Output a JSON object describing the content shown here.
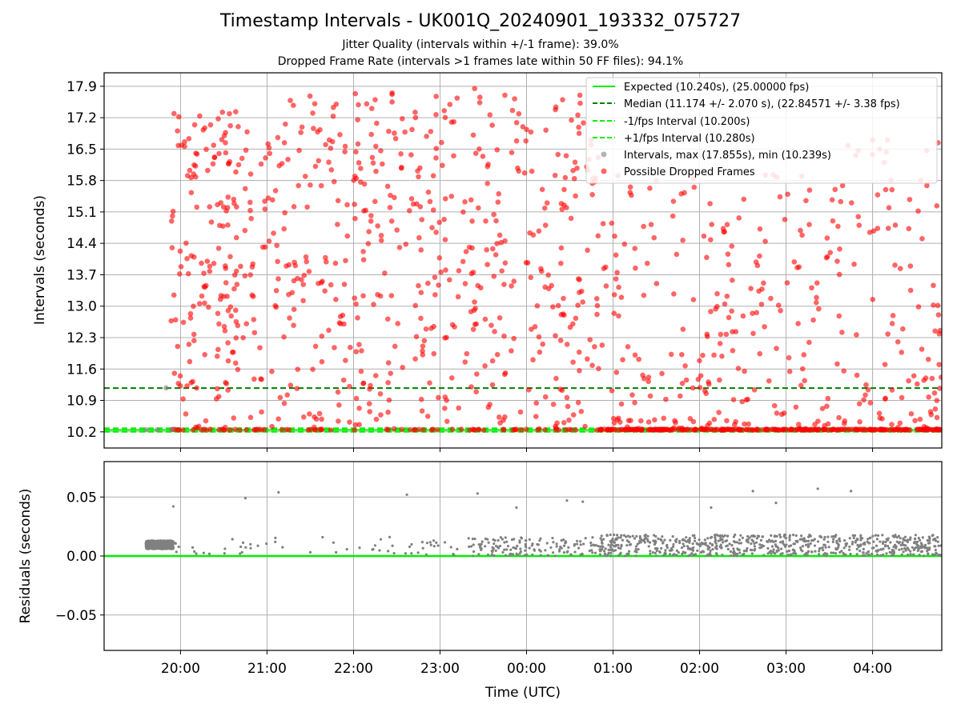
{
  "chart_data": [
    {
      "type": "scatter",
      "title": "Timestamp Intervals - UK001Q_20240901_193332_075727",
      "subtitle_lines": [
        "Jitter Quality (intervals within +/-1 frame): 39.0%",
        "Dropped Frame Rate (intervals >1 frames late within 50 FF files): 94.1%"
      ],
      "xlabel": "",
      "ylabel": "Intervals (seconds)",
      "yticks": [
        "10.2",
        "10.9",
        "11.6",
        "12.3",
        "13.0",
        "13.7",
        "14.4",
        "15.1",
        "15.8",
        "16.5",
        "17.2",
        "17.9"
      ],
      "ylim": [
        9.84,
        18.2
      ],
      "xlim": [
        "19:07",
        "04:48"
      ],
      "grid": true,
      "legend_position": "top-right",
      "legend": [
        {
          "label": "Expected (10.240s), (25.00000 fps)",
          "style": "solid-line",
          "color": "#00ee00"
        },
        {
          "label": "Median (11.174 +/- 2.070 s), (22.84571 +/- 3.38 fps)",
          "style": "dashed-line",
          "color": "#008000"
        },
        {
          "label": "-1/fps Interval (10.200s)",
          "style": "dashed-line",
          "color": "#00ee00"
        },
        {
          "label": "+1/fps Interval (10.280s)",
          "style": "dashed-line",
          "color": "#00ee00"
        },
        {
          "label": "Intervals, max (17.855s), min (10.239s)",
          "style": "marker",
          "color": "#808080"
        },
        {
          "label": "Possible Dropped Frames",
          "style": "marker",
          "color": "#ff0000"
        }
      ],
      "reference_lines": {
        "expected": 10.24,
        "median": 11.174,
        "minus_1_fps": 10.2,
        "plus_1_fps": 10.28
      },
      "series": [
        {
          "name": "Intervals, max (17.855s), min (10.239s)",
          "color": "#808080",
          "points": [
            [
              "19:36",
              10.25
            ],
            [
              "19:44",
              10.25
            ],
            [
              "19:50",
              11.18
            ],
            [
              "19:54",
              10.25
            ]
          ]
        },
        {
          "name": "Possible Dropped Frames",
          "color": "#ff0000",
          "density_profile": [
            {
              "from": "19:53",
              "to": "20:50",
              "y_range": [
                10.2,
                17.3
              ],
              "density": "high"
            },
            {
              "from": "20:50",
              "to": "22:10",
              "y_range": [
                10.2,
                17.7
              ],
              "density": "high"
            },
            {
              "from": "22:10",
              "to": "23:30",
              "y_range": [
                10.2,
                17.9
              ],
              "density": "high"
            },
            {
              "from": "23:30",
              "to": "00:50",
              "y_range": [
                10.2,
                17.6
              ],
              "density": "high"
            },
            {
              "from": "00:50",
              "to": "02:10",
              "y_range": [
                10.2,
                15.9
              ],
              "density": "medium"
            },
            {
              "from": "02:10",
              "to": "03:30",
              "y_range": [
                10.2,
                15.9
              ],
              "density": "medium"
            },
            {
              "from": "03:30",
              "to": "04:48",
              "y_range": [
                10.2,
                16.7
              ],
              "density": "medium"
            }
          ],
          "points": [
            [
              "20:40",
              17.0
            ],
            [
              "21:48",
              17.5
            ],
            [
              "22:15",
              17.6
            ],
            [
              "22:43",
              17.2
            ],
            [
              "23:08",
              17.1
            ],
            [
              "23:24",
              17.85
            ],
            [
              "23:45",
              17.7
            ],
            [
              "00:25",
              17.6
            ],
            [
              "00:37",
              17.7
            ],
            [
              "01:30",
              15.8
            ],
            [
              "03:34",
              15.6
            ],
            [
              "04:00",
              16.7
            ],
            [
              "04:05",
              16.5
            ]
          ]
        }
      ]
    },
    {
      "type": "scatter",
      "xlabel": "Time (UTC)",
      "ylabel": "Residuals (seconds)",
      "xticks": [
        "20:00",
        "21:00",
        "22:00",
        "23:00",
        "00:00",
        "01:00",
        "02:00",
        "03:00",
        "04:00"
      ],
      "xlim": [
        "19:07",
        "04:48"
      ],
      "yticks": [
        "−0.05",
        "0.00",
        "0.05"
      ],
      "ylim": [
        -0.08,
        0.08
      ],
      "grid": true,
      "zero_line": {
        "value": 0.0,
        "color": "#00ee00"
      },
      "series": [
        {
          "color": "#808080",
          "density_profile": [
            {
              "from": "19:36",
              "to": "19:55",
              "y_range": [
                0.006,
                0.013
              ],
              "density": "very-high"
            },
            {
              "from": "19:55",
              "to": "23:20",
              "y_range": [
                0.0,
                0.016
              ],
              "density": "sparse"
            },
            {
              "from": "23:20",
              "to": "00:50",
              "y_range": [
                0.0,
                0.016
              ],
              "density": "medium"
            },
            {
              "from": "00:50",
              "to": "04:48",
              "y_range": [
                0.0,
                0.018
              ],
              "density": "very-high"
            }
          ],
          "points": [
            [
              "19:55",
              0.042
            ],
            [
              "20:45",
              0.049
            ],
            [
              "21:08",
              0.054
            ],
            [
              "22:37",
              0.052
            ],
            [
              "23:26",
              0.053
            ],
            [
              "23:53",
              0.041
            ],
            [
              "00:28",
              0.047
            ],
            [
              "00:39",
              0.046
            ],
            [
              "02:08",
              0.041
            ],
            [
              "02:37",
              0.055
            ],
            [
              "02:53",
              0.045
            ],
            [
              "03:22",
              0.057
            ],
            [
              "03:45",
              0.055
            ]
          ]
        }
      ]
    }
  ]
}
